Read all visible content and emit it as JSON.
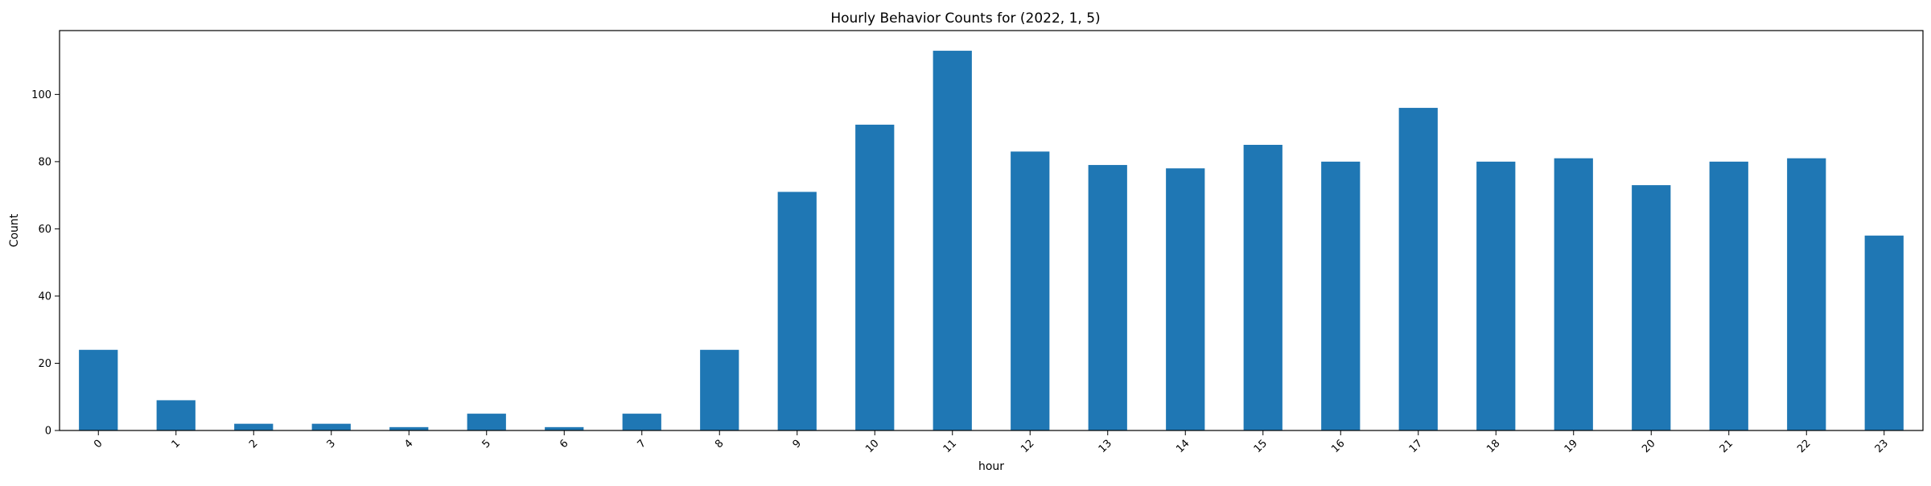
{
  "chart_data": {
    "type": "bar",
    "title": "Hourly Behavior Counts for (2022, 1, 5)",
    "xlabel": "hour",
    "ylabel": "Count",
    "categories": [
      "0",
      "1",
      "2",
      "3",
      "4",
      "5",
      "6",
      "7",
      "8",
      "9",
      "10",
      "11",
      "12",
      "13",
      "14",
      "15",
      "16",
      "17",
      "18",
      "19",
      "20",
      "21",
      "22",
      "23"
    ],
    "values": [
      24,
      9,
      2,
      2,
      1,
      5,
      1,
      5,
      24,
      71,
      91,
      113,
      83,
      79,
      78,
      85,
      80,
      96,
      80,
      81,
      73,
      80,
      81,
      58
    ],
    "ylim": [
      0,
      119
    ],
    "yticks": [
      0,
      20,
      40,
      60,
      80,
      100
    ],
    "x_tick_rotation": 45,
    "grid": false,
    "bar_color": "#1f77b4",
    "legend": "none"
  }
}
